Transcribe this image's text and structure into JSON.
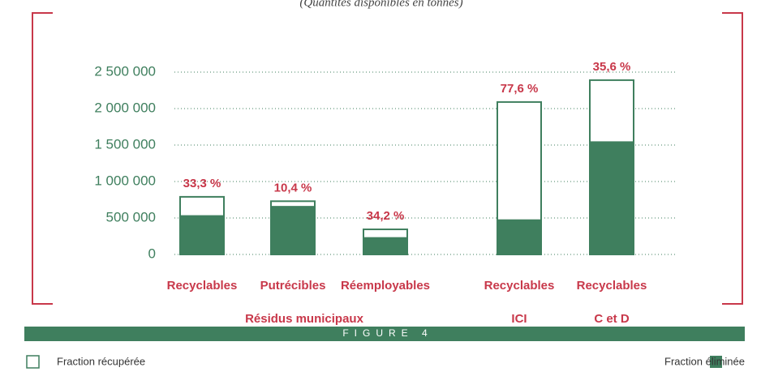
{
  "chart_data": {
    "type": "stacked_bar",
    "subtitle": "(Quantités disponibles en tonnes)",
    "categories": [
      "Recyclables",
      "Putrécibles",
      "Réemployables",
      "Recyclables",
      "Recyclables"
    ],
    "groups": [
      "Résidus municipaux",
      "ICI",
      "C et D"
    ],
    "series": [
      {
        "name": "Fraction éliminée",
        "color": "#3f7f5e",
        "values": [
          527000,
          654000,
          226000,
          470000,
          1540000
        ]
      },
      {
        "name": "Fraction récupérée",
        "color": "#ffffff",
        "values": [
          263000,
          76000,
          118000,
          1620000,
          850000
        ]
      }
    ],
    "bar_labels": [
      "33,3 %",
      "10,4 %",
      "34,2 %",
      "77,6 %",
      "35,6 %"
    ],
    "ylim": [
      0,
      2500000
    ],
    "yticks": [
      0,
      {
        "value": 500000,
        "label": "500 000"
      },
      {
        "value": 1000000,
        "label": "1 000 000"
      },
      {
        "value": 1500000,
        "label": "1 500 000"
      },
      {
        "value": 2000000,
        "label": "2 000 000"
      },
      {
        "value": 2500000,
        "label": "2 500 000"
      }
    ],
    "grid": true,
    "figure_label": "FIGURE 4"
  }
}
